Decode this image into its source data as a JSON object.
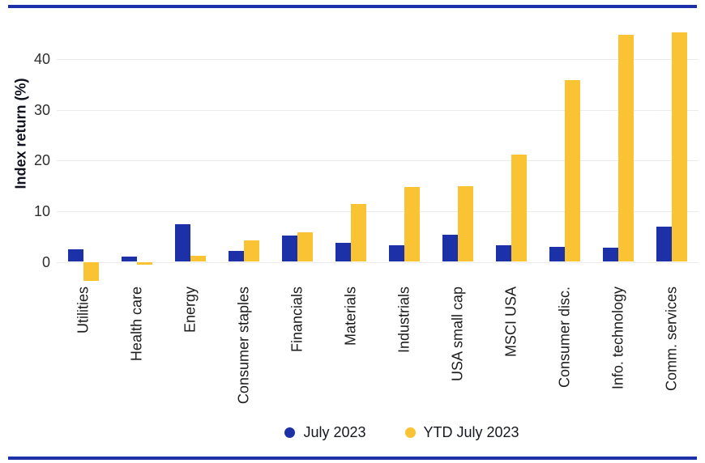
{
  "chart_data": {
    "type": "bar",
    "title": "",
    "xlabel": "",
    "ylabel": "Index return (%)",
    "categories": [
      "Utilities",
      "Health care",
      "Energy",
      "Consumer staples",
      "Financials",
      "Materials",
      "Industrials",
      "USA small cap",
      "MSCI USA",
      "Consumer disc.",
      "Info. technology",
      "Comm. services"
    ],
    "series": [
      {
        "name": "July 2023",
        "color": "#1C30A8",
        "values": [
          2.4,
          1.0,
          7.4,
          2.1,
          5.2,
          3.7,
          3.2,
          5.3,
          3.3,
          3.0,
          2.8,
          6.9
        ]
      },
      {
        "name": "YTD July 2023",
        "color": "#FAC334",
        "values": [
          -3.7,
          -0.5,
          1.2,
          4.3,
          5.8,
          11.5,
          14.8,
          15.0,
          21.2,
          35.8,
          44.8,
          45.3
        ]
      }
    ],
    "yticks": [
      0,
      10,
      20,
      30,
      40
    ],
    "ytick_labels": [
      "0",
      "10",
      "20",
      "30",
      "40"
    ],
    "ylim": [
      -6.5,
      46.5
    ],
    "grid": "horizontal-only",
    "legend_position": "bottom-center"
  },
  "colors": {
    "series_blue": "#1C30A8",
    "series_yellow": "#FAC334",
    "gridline": "#EBEBEB",
    "border_rule": "#1C30A8",
    "text": "#1C1C1C"
  }
}
